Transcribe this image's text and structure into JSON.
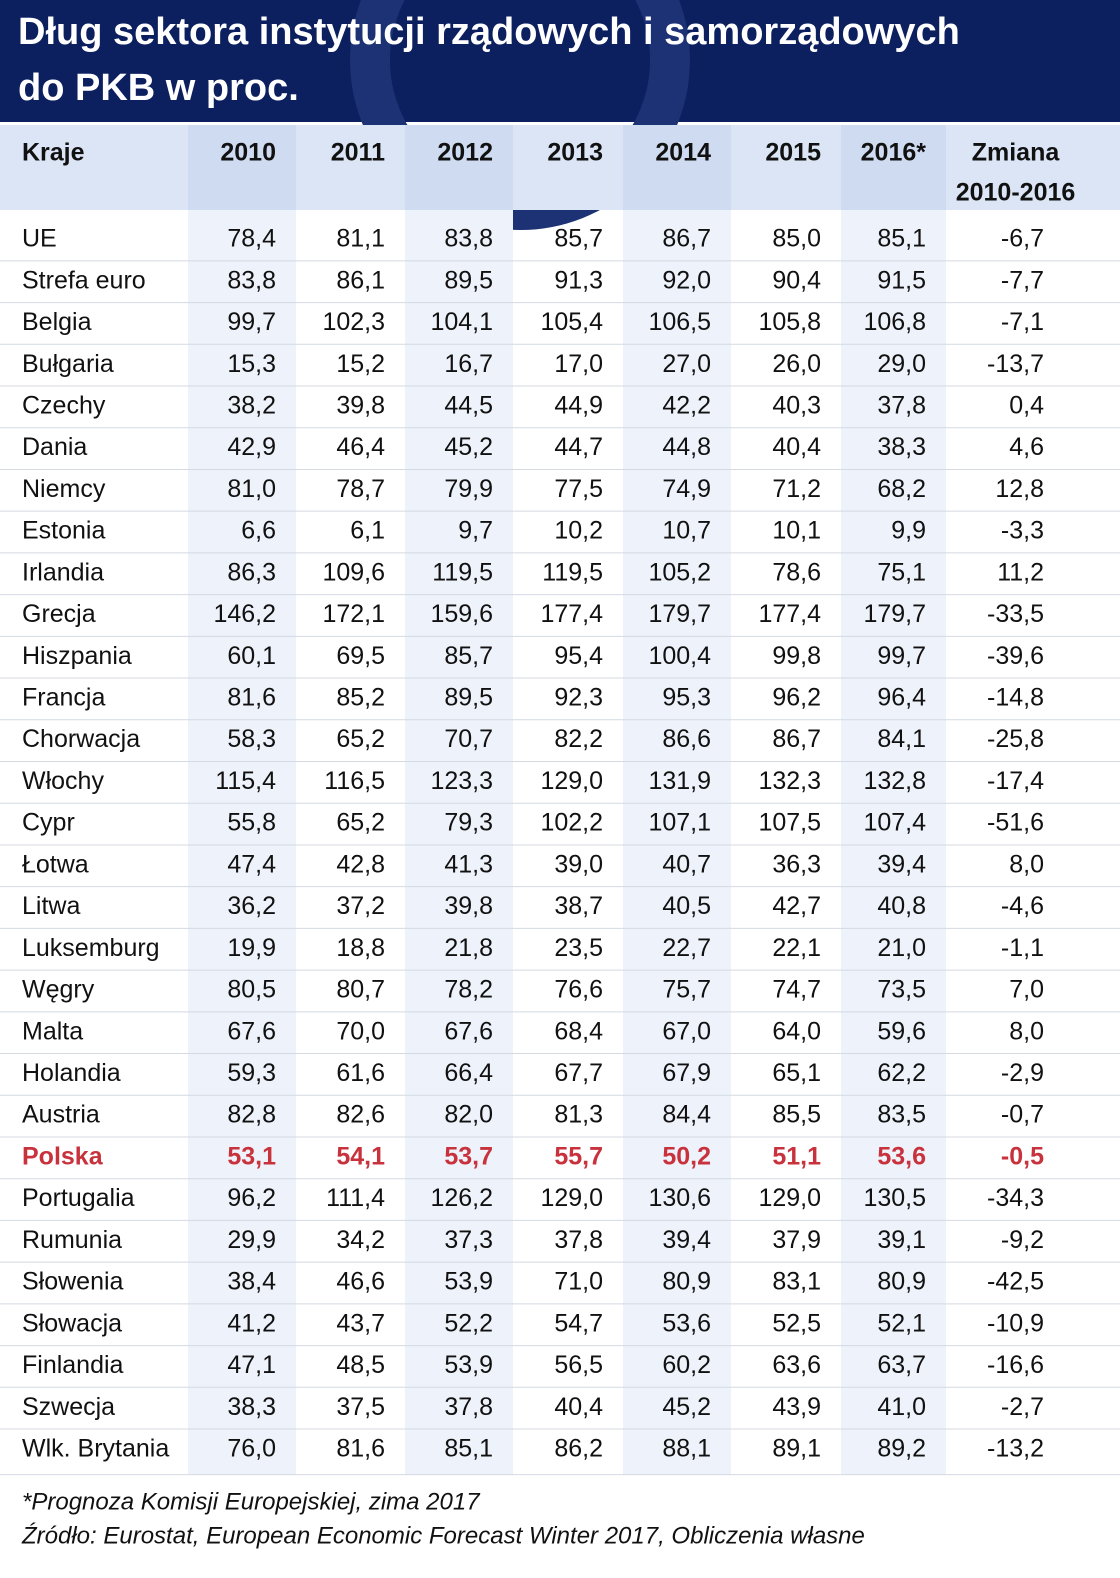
{
  "title": [
    "Dług sektora instytucji rządowych i samorządowych",
    "do PKB w proc."
  ],
  "table": {
    "header": [
      "Kraje",
      "2010",
      "2011",
      "2012",
      "2013",
      "2014",
      "2015",
      "2016*",
      [
        "Zmiana",
        "2010-2016"
      ]
    ],
    "rows": [
      [
        "UE",
        "78,4",
        "81,1",
        "83,8",
        "85,7",
        "86,7",
        "85,0",
        "85,1",
        "-6,7"
      ],
      [
        "Strefa euro",
        "83,8",
        "86,1",
        "89,5",
        "91,3",
        "92,0",
        "90,4",
        "91,5",
        "-7,7"
      ],
      [
        "Belgia",
        "99,7",
        "102,3",
        "104,1",
        "105,4",
        "106,5",
        "105,8",
        "106,8",
        "-7,1"
      ],
      [
        "Bułgaria",
        "15,3",
        "15,2",
        "16,7",
        "17,0",
        "27,0",
        "26,0",
        "29,0",
        "-13,7"
      ],
      [
        "Czechy",
        "38,2",
        "39,8",
        "44,5",
        "44,9",
        "42,2",
        "40,3",
        "37,8",
        "0,4"
      ],
      [
        "Dania",
        "42,9",
        "46,4",
        "45,2",
        "44,7",
        "44,8",
        "40,4",
        "38,3",
        "4,6"
      ],
      [
        "Niemcy",
        "81,0",
        "78,7",
        "79,9",
        "77,5",
        "74,9",
        "71,2",
        "68,2",
        "12,8"
      ],
      [
        "Estonia",
        "6,6",
        "6,1",
        "9,7",
        "10,2",
        "10,7",
        "10,1",
        "9,9",
        "-3,3"
      ],
      [
        "Irlandia",
        "86,3",
        "109,6",
        "119,5",
        "119,5",
        "105,2",
        "78,6",
        "75,1",
        "11,2"
      ],
      [
        "Grecja",
        "146,2",
        "172,1",
        "159,6",
        "177,4",
        "179,7",
        "177,4",
        "179,7",
        "-33,5"
      ],
      [
        "Hiszpania",
        "60,1",
        "69,5",
        "85,7",
        "95,4",
        "100,4",
        "99,8",
        "99,7",
        "-39,6"
      ],
      [
        "Francja",
        "81,6",
        "85,2",
        "89,5",
        "92,3",
        "95,3",
        "96,2",
        "96,4",
        "-14,8"
      ],
      [
        "Chorwacja",
        "58,3",
        "65,2",
        "70,7",
        "82,2",
        "86,6",
        "86,7",
        "84,1",
        "-25,8"
      ],
      [
        "Włochy",
        "115,4",
        "116,5",
        "123,3",
        "129,0",
        "131,9",
        "132,3",
        "132,8",
        "-17,4"
      ],
      [
        "Cypr",
        "55,8",
        "65,2",
        "79,3",
        "102,2",
        "107,1",
        "107,5",
        "107,4",
        "-51,6"
      ],
      [
        "Łotwa",
        "47,4",
        "42,8",
        "41,3",
        "39,0",
        "40,7",
        "36,3",
        "39,4",
        "8,0"
      ],
      [
        "Litwa",
        "36,2",
        "37,2",
        "39,8",
        "38,7",
        "40,5",
        "42,7",
        "40,8",
        "-4,6"
      ],
      [
        "Luksemburg",
        "19,9",
        "18,8",
        "21,8",
        "23,5",
        "22,7",
        "22,1",
        "21,0",
        "-1,1"
      ],
      [
        "Węgry",
        "80,5",
        "80,7",
        "78,2",
        "76,6",
        "75,7",
        "74,7",
        "73,5",
        "7,0"
      ],
      [
        "Malta",
        "67,6",
        "70,0",
        "67,6",
        "68,4",
        "67,0",
        "64,0",
        "59,6",
        "8,0"
      ],
      [
        "Holandia",
        "59,3",
        "61,6",
        "66,4",
        "67,7",
        "67,9",
        "65,1",
        "62,2",
        "-2,9"
      ],
      [
        "Austria",
        "82,8",
        "82,6",
        "82,0",
        "81,3",
        "84,4",
        "85,5",
        "83,5",
        "-0,7"
      ],
      [
        "Polska",
        "53,1",
        "54,1",
        "53,7",
        "55,7",
        "50,2",
        "51,1",
        "53,6",
        "-0,5"
      ],
      [
        "Portugalia",
        "96,2",
        "111,4",
        "126,2",
        "129,0",
        "130,6",
        "129,0",
        "130,5",
        "-34,3"
      ],
      [
        "Rumunia",
        "29,9",
        "34,2",
        "37,3",
        "37,8",
        "39,4",
        "37,9",
        "39,1",
        "-9,2"
      ],
      [
        "Słowenia",
        "38,4",
        "46,6",
        "53,9",
        "71,0",
        "80,9",
        "83,1",
        "80,9",
        "-42,5"
      ],
      [
        "Słowacja",
        "41,2",
        "43,7",
        "52,2",
        "54,7",
        "53,6",
        "52,5",
        "52,1",
        "-10,9"
      ],
      [
        "Finlandia",
        "47,1",
        "48,5",
        "53,9",
        "56,5",
        "60,2",
        "63,6",
        "63,7",
        "-16,6"
      ],
      [
        "Szwecja",
        "38,3",
        "37,5",
        "37,8",
        "40,4",
        "45,2",
        "43,9",
        "41,0",
        "-2,7"
      ],
      [
        "Wlk. Brytania",
        "76,0",
        "81,6",
        "85,1",
        "86,2",
        "88,1",
        "89,1",
        "89,2",
        "-13,2"
      ]
    ],
    "highlight": {
      "row": 22,
      "color": "#c8323c"
    }
  },
  "footnotes": [
    "*Prognoza Komisji Europejskiej, zima 2017",
    "Źródło: Eurostat, European Economic Forecast Winter 2017, Obliczenia własne"
  ]
}
